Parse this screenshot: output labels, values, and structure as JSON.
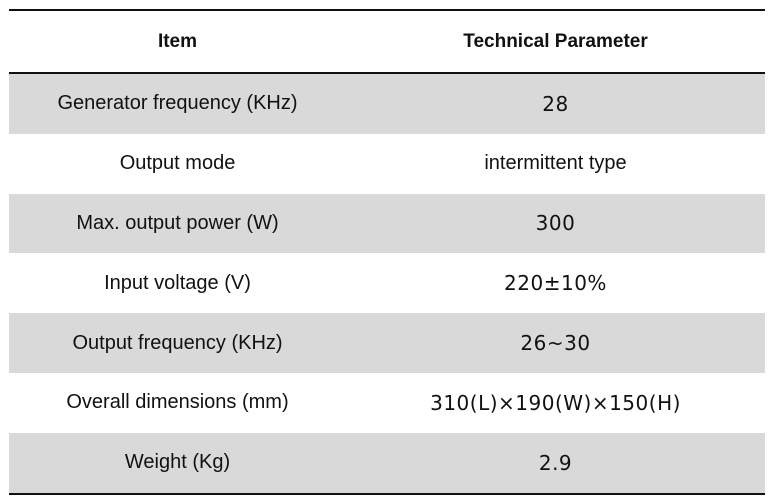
{
  "table": {
    "headers": {
      "item": "Item",
      "parameter": "Technical Parameter"
    },
    "rows": [
      {
        "item": "Generator frequency (KHz)",
        "value": "28"
      },
      {
        "item": "Output mode",
        "value": "intermittent type"
      },
      {
        "item": "Max. output power (W)",
        "value": "300"
      },
      {
        "item": "Input voltage (V)",
        "value": "220±10%"
      },
      {
        "item": "Output frequency (KHz)",
        "value": "26~30"
      },
      {
        "item": "Overall dimensions (mm)",
        "value": "310(L)×190(W)×150(H)"
      },
      {
        "item": "Weight (Kg)",
        "value": "2.9"
      }
    ]
  }
}
